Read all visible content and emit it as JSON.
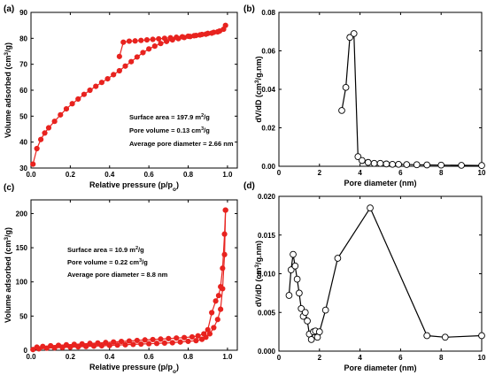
{
  "chart_data": [
    {
      "panel": "(a)",
      "type": "line",
      "xlabel": "Relative pressure (p/p",
      "xlabel_sub": "o",
      "xlabel_end": ")",
      "ylabel": "Volume adsorbed (cm",
      "ylabel_sup": "3",
      "ylabel_end": "/g)",
      "xlim": [
        0,
        1.05
      ],
      "ylim": [
        30,
        90
      ],
      "xticks": [
        0.0,
        0.2,
        0.4,
        0.6,
        0.8,
        1.0
      ],
      "yticks": [
        30,
        40,
        50,
        60,
        70,
        80,
        90
      ],
      "xtick_labels": [
        "0.0",
        "0.2",
        "0.4",
        "0.6",
        "0.8",
        "1.0"
      ],
      "ytick_labels": [
        "30",
        "40",
        "50",
        "60",
        "70",
        "80",
        "90"
      ],
      "marker": "filled-circle",
      "color": "#e8231f",
      "annotations": [
        {
          "pre": "Surface area = 197.9 m",
          "sup": "2",
          "post": "/g"
        },
        {
          "pre": "Pore volume = 0.13 cm",
          "sup": "3",
          "post": "/g"
        },
        {
          "pre": "Average pore diameter = 2.66 nm",
          "sup": "",
          "post": ""
        }
      ],
      "series": [
        {
          "x": [
            0.01,
            0.03,
            0.05,
            0.07,
            0.09,
            0.12,
            0.15,
            0.18,
            0.21,
            0.24,
            0.27,
            0.3,
            0.33,
            0.36,
            0.39,
            0.42,
            0.45,
            0.48,
            0.51,
            0.54,
            0.57,
            0.6,
            0.63,
            0.66,
            0.69,
            0.72,
            0.75,
            0.78,
            0.81,
            0.84,
            0.87,
            0.9,
            0.93,
            0.96,
            0.99
          ],
          "y": [
            31.5,
            37.5,
            41,
            43.5,
            45.5,
            48,
            50.5,
            52.8,
            54.8,
            56.6,
            58.4,
            60,
            61.5,
            63,
            64.4,
            66,
            67.5,
            69.3,
            71,
            72.8,
            74.5,
            75.9,
            77,
            78,
            78.8,
            79.4,
            79.9,
            80.3,
            80.7,
            81.1,
            81.5,
            81.9,
            82.3,
            82.8,
            85
          ]
        },
        {
          "x": [
            0.45,
            0.47,
            0.5,
            0.53,
            0.56,
            0.59,
            0.62,
            0.65,
            0.68,
            0.71,
            0.74,
            0.77,
            0.8,
            0.83,
            0.86,
            0.89,
            0.92,
            0.95,
            0.98
          ],
          "y": [
            73,
            78.5,
            78.9,
            79,
            79.2,
            79.4,
            79.6,
            79.8,
            80,
            80.2,
            80.4,
            80.6,
            80.8,
            81,
            81.3,
            81.6,
            82,
            82.5,
            83.5
          ]
        }
      ]
    },
    {
      "panel": "(b)",
      "type": "line",
      "xlabel": "Pore diameter (nm)",
      "ylabel": "dV/dD (cm",
      "ylabel_sup": "3",
      "ylabel_end": "/g.nm)",
      "xlim": [
        0,
        10
      ],
      "ylim": [
        0,
        0.08
      ],
      "xticks": [
        0,
        2,
        4,
        6,
        8,
        10
      ],
      "yticks": [
        0,
        0.02,
        0.04,
        0.06,
        0.08
      ],
      "xtick_labels": [
        "0",
        "2",
        "4",
        "6",
        "8",
        "10"
      ],
      "ytick_labels": [
        "0.00",
        "0.02",
        "0.04",
        "0.06",
        "0.08"
      ],
      "marker": "open-circle",
      "color": "#000000",
      "series": [
        {
          "x": [
            3.1,
            3.3,
            3.5,
            3.7,
            3.9,
            4.1,
            4.4,
            4.7,
            5.0,
            5.3,
            5.6,
            5.9,
            6.3,
            6.8,
            7.3,
            8.0,
            9.0,
            10.0
          ],
          "y": [
            0.029,
            0.041,
            0.067,
            0.069,
            0.005,
            0.003,
            0.002,
            0.0015,
            0.0015,
            0.0012,
            0.001,
            0.001,
            0.0009,
            0.0008,
            0.0007,
            0.0006,
            0.0005,
            0.0004
          ]
        }
      ]
    },
    {
      "panel": "(c)",
      "type": "line",
      "xlabel": "Relative pressure (p/p",
      "xlabel_sub": "o",
      "xlabel_end": ")",
      "ylabel": "Volume adsorbed (cm",
      "ylabel_sup": "3",
      "ylabel_end": "/g)",
      "xlim": [
        0,
        1.05
      ],
      "ylim": [
        0,
        220
      ],
      "xticks": [
        0.0,
        0.2,
        0.4,
        0.6,
        0.8,
        1.0
      ],
      "yticks": [
        0,
        50,
        100,
        150,
        200
      ],
      "xtick_labels": [
        "0.0",
        "0.2",
        "0.4",
        "0.6",
        "0.8",
        "1.0"
      ],
      "ytick_labels": [
        "0",
        "50",
        "100",
        "150",
        "200"
      ],
      "marker": "filled-circle",
      "color": "#e8231f",
      "annotations": [
        {
          "pre": "Surface area = 10.9 m",
          "sup": "2",
          "post": "/g"
        },
        {
          "pre": "Pore volume = 0.22 cm",
          "sup": "3",
          "post": "/g"
        },
        {
          "pre": "Average pore diameter = 8.8 nm",
          "sup": "",
          "post": ""
        }
      ],
      "series": [
        {
          "x": [
            0.01,
            0.04,
            0.08,
            0.12,
            0.16,
            0.2,
            0.24,
            0.28,
            0.32,
            0.36,
            0.4,
            0.44,
            0.48,
            0.52,
            0.56,
            0.6,
            0.64,
            0.68,
            0.72,
            0.76,
            0.8,
            0.84,
            0.87,
            0.89,
            0.91,
            0.93,
            0.95,
            0.965,
            0.975,
            0.985,
            0.99
          ],
          "y": [
            1,
            2,
            3,
            3.5,
            4,
            4.5,
            5,
            5.5,
            6,
            6.5,
            7,
            7.5,
            8,
            8.5,
            9,
            9.5,
            10,
            10.5,
            11,
            12,
            13,
            14,
            16,
            19,
            24,
            33,
            45,
            60,
            90,
            140,
            205
          ]
        },
        {
          "x": [
            0.99,
            0.985,
            0.975,
            0.965,
            0.955,
            0.94,
            0.92,
            0.9,
            0.88,
            0.85,
            0.82,
            0.78,
            0.74,
            0.7,
            0.66,
            0.62,
            0.58,
            0.54,
            0.5,
            0.46,
            0.42,
            0.38,
            0.34,
            0.3,
            0.26,
            0.22,
            0.18,
            0.14,
            0.1,
            0.06,
            0.03
          ],
          "y": [
            205,
            170,
            120,
            93,
            80,
            72,
            55,
            30,
            24,
            21,
            19.5,
            18.5,
            17.8,
            17,
            16.3,
            15.6,
            15,
            14.3,
            13.5,
            12.8,
            12,
            11.3,
            10.6,
            10,
            9.3,
            8.6,
            8,
            7.2,
            6.5,
            5.5,
            4.5
          ]
        }
      ]
    },
    {
      "panel": "(d)",
      "type": "line",
      "xlabel": "Pore diameter (nm)",
      "ylabel": "dV/dD (cm",
      "ylabel_sup": "3",
      "ylabel_end": "/g.nm)",
      "xlim": [
        0,
        10
      ],
      "ylim": [
        0,
        0.02
      ],
      "xticks": [
        0,
        2,
        4,
        6,
        8,
        10
      ],
      "yticks": [
        0,
        0.005,
        0.01,
        0.015,
        0.02
      ],
      "xtick_labels": [
        "0",
        "2",
        "4",
        "6",
        "8",
        "10"
      ],
      "ytick_labels": [
        "0.000",
        "0.005",
        "0.010",
        "0.015",
        "0.020"
      ],
      "marker": "open-circle",
      "color": "#000000",
      "series": [
        {
          "x": [
            0.5,
            0.6,
            0.7,
            0.8,
            0.9,
            1.0,
            1.1,
            1.2,
            1.3,
            1.4,
            1.5,
            1.6,
            1.7,
            1.8,
            1.9,
            2.0,
            2.3,
            2.9,
            4.5,
            7.3,
            8.2,
            10.0
          ],
          "y": [
            0.0072,
            0.0105,
            0.0125,
            0.011,
            0.0093,
            0.0075,
            0.0055,
            0.0045,
            0.005,
            0.0039,
            0.0022,
            0.0015,
            0.0025,
            0.0026,
            0.0018,
            0.0025,
            0.0053,
            0.012,
            0.0185,
            0.002,
            0.0018,
            0.002
          ]
        }
      ]
    }
  ]
}
